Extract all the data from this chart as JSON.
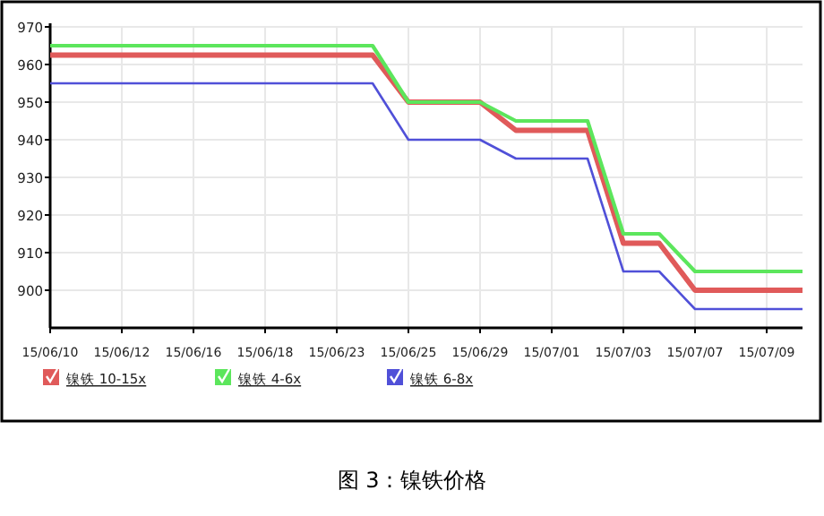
{
  "chart_data": {
    "type": "line",
    "categories": [
      "15/06/10",
      null,
      "15/06/12",
      null,
      "15/06/16",
      null,
      "15/06/18",
      null,
      "15/06/23",
      null,
      "15/06/25",
      null,
      "15/06/29",
      null,
      "15/07/01",
      null,
      "15/07/03",
      null,
      "15/07/07",
      null,
      "15/07/09",
      null
    ],
    "series": [
      {
        "name": "镍铁 10-15x",
        "color": "#e05a5a",
        "values": [
          962.5,
          962.5,
          962.5,
          962.5,
          962.5,
          962.5,
          962.5,
          962.5,
          962.5,
          962.5,
          950,
          950,
          950,
          942.5,
          942.5,
          942.5,
          912.5,
          912.5,
          900,
          900,
          900,
          900
        ]
      },
      {
        "name": "镍铁 4-6x",
        "color": "#5ce65c",
        "values": [
          965,
          965,
          965,
          965,
          965,
          965,
          965,
          965,
          965,
          965,
          950,
          950,
          950,
          945,
          945,
          945,
          915,
          915,
          905,
          905,
          905,
          905
        ]
      },
      {
        "name": "镍铁 6-8x",
        "color": "#5050d8",
        "values": [
          955,
          955,
          955,
          955,
          955,
          955,
          955,
          955,
          955,
          955,
          940,
          940,
          940,
          935,
          935,
          935,
          905,
          905,
          895,
          895,
          895,
          895
        ]
      }
    ],
    "ylim": [
      890,
      970
    ],
    "yticks": [
      900,
      910,
      920,
      930,
      940,
      950,
      960,
      970
    ],
    "grid": true,
    "legend": "bottom left",
    "marker": "none",
    "annotations": [
      "图 3：镍铁价格"
    ]
  }
}
